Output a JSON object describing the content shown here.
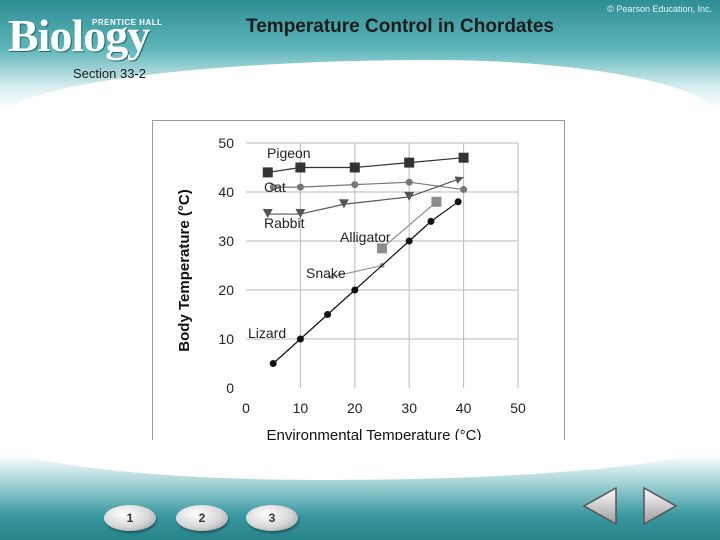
{
  "logo": {
    "wordmark": "Biology",
    "publisher": "PRENTICE HALL"
  },
  "copyright": "© Pearson Education, Inc.",
  "slide": {
    "title": "Temperature Control in Chordates",
    "section": "Section 33-2"
  },
  "navigation": {
    "pages": [
      "1",
      "2",
      "3"
    ],
    "prev_icon": "arrow-left-icon",
    "next_icon": "arrow-right-icon"
  },
  "chart_data": {
    "type": "line",
    "title": "",
    "xlabel": "Environmental Temperature (°C)",
    "ylabel": "Body Temperature (°C)",
    "xlim": [
      0,
      50
    ],
    "ylim": [
      0,
      50
    ],
    "xticks": [
      "0",
      "10",
      "20",
      "30",
      "40",
      "50"
    ],
    "yticks": [
      "0",
      "10",
      "20",
      "30",
      "40",
      "50"
    ],
    "grid": true,
    "series": [
      {
        "name": "Pigeon",
        "marker": "square",
        "color": "#333333",
        "x": [
          4,
          10,
          20,
          30,
          40
        ],
        "y": [
          44,
          45,
          45,
          46,
          47
        ]
      },
      {
        "name": "Cat",
        "marker": "circle",
        "color": "#777777",
        "x": [
          5,
          10,
          20,
          30,
          40
        ],
        "y": [
          41,
          41,
          41.5,
          42,
          40.5
        ]
      },
      {
        "name": "Rabbit",
        "marker": "triangle-down",
        "color": "#555555",
        "x": [
          4,
          10,
          18,
          30,
          40
        ],
        "y": [
          35.5,
          35.5,
          37.5,
          39,
          43
        ]
      },
      {
        "name": "Alligator",
        "marker": "square",
        "color": "#8c8c8c",
        "x": [
          25,
          35
        ],
        "y": [
          28.5,
          38
        ]
      },
      {
        "name": "Snake",
        "marker": "arrow",
        "color": "#9a9a9a",
        "x": [
          15,
          25
        ],
        "y": [
          22.5,
          25
        ]
      },
      {
        "name": "Lizard",
        "marker": "circle",
        "color": "#111111",
        "x": [
          5,
          10,
          15,
          20,
          30,
          34,
          39
        ],
        "y": [
          5,
          10,
          15,
          20,
          30,
          34,
          38
        ]
      }
    ]
  }
}
